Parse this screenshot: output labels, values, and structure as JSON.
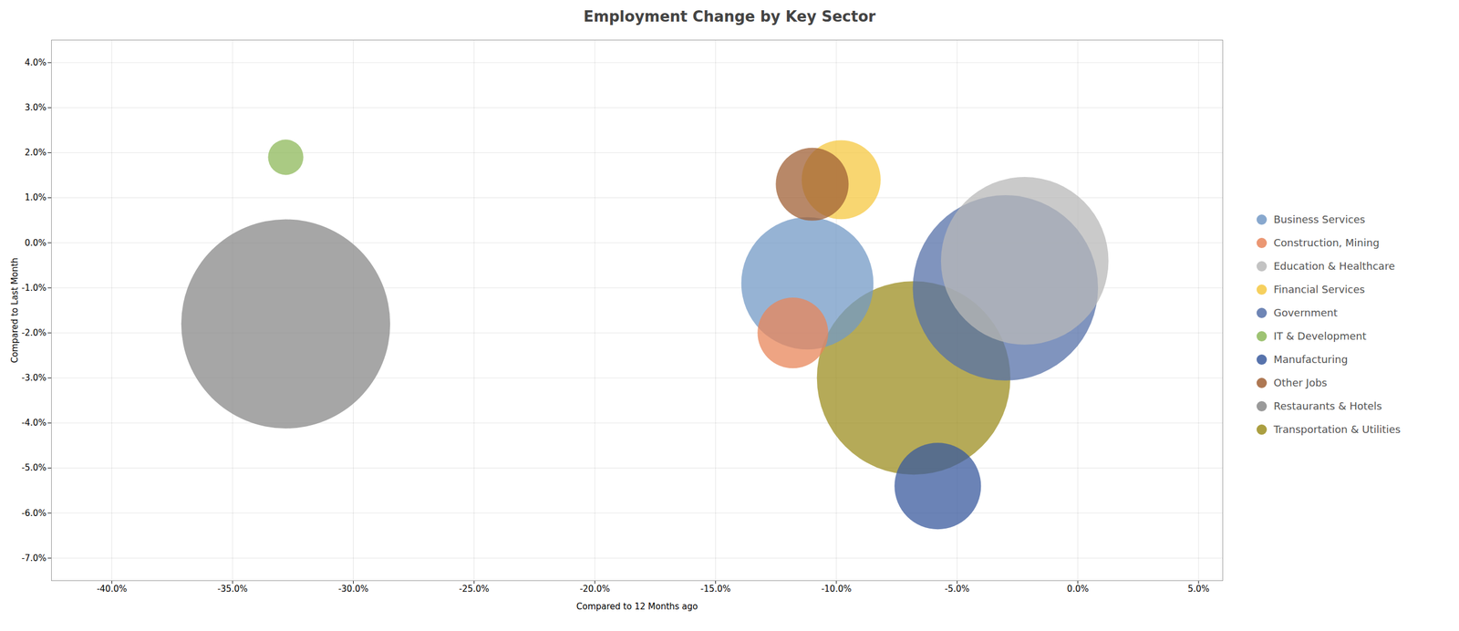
{
  "chart_data": {
    "type": "scatter",
    "title": "Employment Change by Key Sector",
    "xlabel": "Compared to 12 Months ago",
    "ylabel": "Compared to Last Month",
    "xlim": [
      -0.425,
      0.06
    ],
    "ylim": [
      -0.075,
      0.045
    ],
    "xticks": [
      {
        "value": -0.4,
        "label": "-40.0%"
      },
      {
        "value": -0.35,
        "label": "-35.0%"
      },
      {
        "value": -0.3,
        "label": "-30.0%"
      },
      {
        "value": -0.25,
        "label": "-25.0%"
      },
      {
        "value": -0.2,
        "label": "-20.0%"
      },
      {
        "value": -0.15,
        "label": "-15.0%"
      },
      {
        "value": -0.1,
        "label": "-10.0%"
      },
      {
        "value": -0.05,
        "label": "-5.0%"
      },
      {
        "value": 0.0,
        "label": "0.0%"
      },
      {
        "value": 0.05,
        "label": "5.0%"
      }
    ],
    "yticks": [
      {
        "value": -0.07,
        "label": "-7.0%"
      },
      {
        "value": -0.06,
        "label": "-6.0%"
      },
      {
        "value": -0.05,
        "label": "-5.0%"
      },
      {
        "value": -0.04,
        "label": "-4.0%"
      },
      {
        "value": -0.03,
        "label": "-3.0%"
      },
      {
        "value": -0.02,
        "label": "-2.0%"
      },
      {
        "value": -0.01,
        "label": "-1.0%"
      },
      {
        "value": 0.0,
        "label": "0.0%"
      },
      {
        "value": 0.01,
        "label": "1.0%"
      },
      {
        "value": 0.02,
        "label": "2.0%"
      },
      {
        "value": 0.03,
        "label": "3.0%"
      },
      {
        "value": 0.04,
        "label": "4.0%"
      }
    ],
    "grid": true,
    "legend": "right",
    "series": [
      {
        "name": "Business Services",
        "color": "#7399c6",
        "x": [
          -0.112
        ],
        "values": [
          -0.009
        ],
        "size": [
          28000
        ]
      },
      {
        "name": "Construction, Mining",
        "color": "#e8855a",
        "x": [
          -0.118
        ],
        "values": [
          -0.02
        ],
        "size": [
          8000
        ]
      },
      {
        "name": "Education & Healthcare",
        "color": "#b8b8b8",
        "x": [
          -0.022
        ],
        "values": [
          -0.004
        ],
        "size": [
          45000
        ]
      },
      {
        "name": "Financial Services",
        "color": "#f5c842",
        "x": [
          -0.098
        ],
        "values": [
          0.014
        ],
        "size": [
          10000
        ]
      },
      {
        "name": "Government",
        "color": "#5570a8",
        "x": [
          -0.03
        ],
        "values": [
          -0.01
        ],
        "size": [
          55000
        ]
      },
      {
        "name": "IT & Development",
        "color": "#8db85a",
        "x": [
          -0.328
        ],
        "values": [
          0.019
        ],
        "size": [
          2000
        ]
      },
      {
        "name": "Manufacturing",
        "color": "#3a5a9e",
        "x": [
          -0.058
        ],
        "values": [
          -0.054
        ],
        "size": [
          12000
        ]
      },
      {
        "name": "Other Jobs",
        "color": "#a06035",
        "x": [
          -0.11
        ],
        "values": [
          0.013
        ],
        "size": [
          8500
        ]
      },
      {
        "name": "Restaurants & Hotels",
        "color": "#888888",
        "x": [
          -0.328
        ],
        "values": [
          -0.018
        ],
        "size": [
          70000
        ]
      },
      {
        "name": "Transportation & Utilities",
        "color": "#9c8e20",
        "x": [
          -0.068
        ],
        "values": [
          -0.03
        ],
        "size": [
          60000
        ]
      }
    ]
  }
}
